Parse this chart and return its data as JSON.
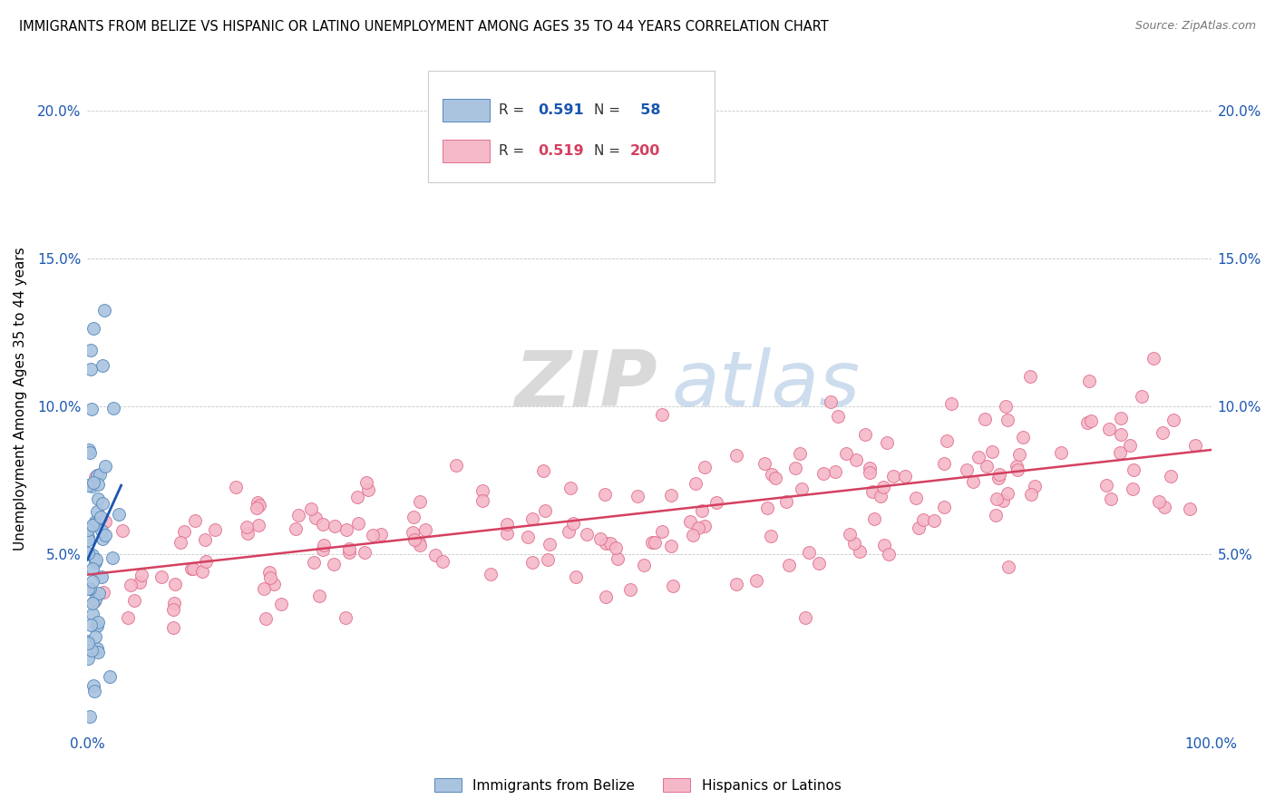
{
  "title": "IMMIGRANTS FROM BELIZE VS HISPANIC OR LATINO UNEMPLOYMENT AMONG AGES 35 TO 44 YEARS CORRELATION CHART",
  "source": "Source: ZipAtlas.com",
  "ylabel": "Unemployment Among Ages 35 to 44 years",
  "xlim": [
    0,
    1.0
  ],
  "ylim": [
    -0.01,
    0.215
  ],
  "yticks": [
    0.05,
    0.1,
    0.15,
    0.2
  ],
  "ytick_labels": [
    "5.0%",
    "10.0%",
    "15.0%",
    "20.0%"
  ],
  "xticks": [
    0.0,
    0.1,
    0.2,
    0.3,
    0.4,
    0.5,
    0.6,
    0.7,
    0.8,
    0.9,
    1.0
  ],
  "xtick_labels": [
    "0.0%",
    "",
    "",
    "",
    "",
    "",
    "",
    "",
    "",
    "",
    "100.0%"
  ],
  "blue_R": 0.591,
  "blue_N": 58,
  "pink_R": 0.519,
  "pink_N": 200,
  "blue_scatter_color": "#aac4e0",
  "blue_edge_color": "#5588bb",
  "blue_line_color": "#1a56b0",
  "pink_scatter_color": "#f5b8c8",
  "pink_edge_color": "#e07090",
  "pink_line_color": "#d44060",
  "watermark_zip": "ZIP",
  "watermark_atlas": "atlas",
  "legend_label_blue": "Immigrants from Belize",
  "legend_label_pink": "Hispanics or Latinos",
  "blue_seed": 12,
  "pink_seed": 99,
  "title_fontsize": 10.5,
  "source_fontsize": 9,
  "tick_fontsize": 11,
  "ylabel_fontsize": 11
}
